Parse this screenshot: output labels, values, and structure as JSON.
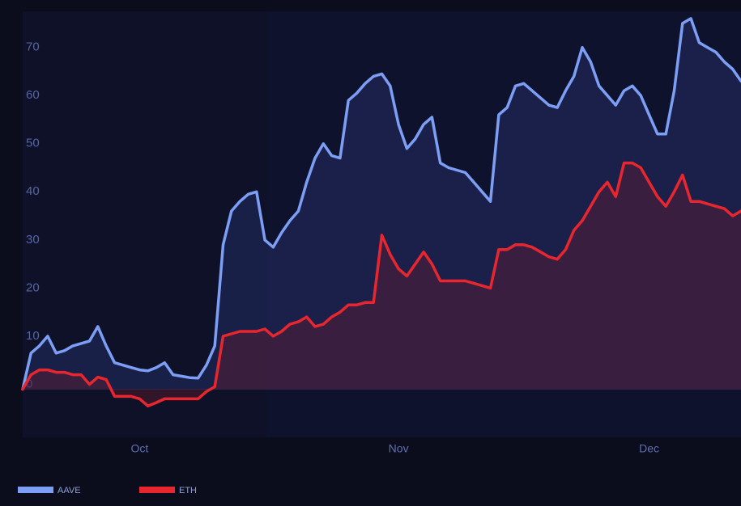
{
  "chart_data": {
    "type": "area-line",
    "categories": [
      null,
      null,
      null,
      null,
      null,
      null,
      null,
      null,
      null,
      null,
      null,
      null,
      null,
      null,
      "Oct",
      null,
      null,
      null,
      null,
      null,
      null,
      null,
      null,
      null,
      null,
      null,
      null,
      null,
      null,
      null,
      null,
      null,
      null,
      null,
      null,
      null,
      null,
      null,
      null,
      null,
      null,
      null,
      null,
      null,
      null,
      "Nov",
      null,
      null,
      null,
      null,
      null,
      null,
      null,
      null,
      null,
      null,
      null,
      null,
      null,
      null,
      null,
      null,
      null,
      null,
      null,
      null,
      null,
      null,
      null,
      null,
      null,
      null,
      null,
      null,
      null,
      "Dec",
      null,
      null,
      null,
      null,
      null,
      null,
      null,
      null,
      null,
      null,
      null
    ],
    "series": [
      {
        "name": "AAVE",
        "color": "#7c9ef5",
        "values": [
          0,
          7.5,
          9,
          11,
          7.5,
          8,
          9,
          9.5,
          10,
          13,
          9,
          5.5,
          5,
          4.5,
          4,
          3.8,
          4.5,
          5.5,
          3,
          2.7,
          2.4,
          2.3,
          5,
          9,
          30,
          37,
          39,
          40.5,
          41,
          31,
          29.5,
          32.5,
          35,
          37,
          43,
          48,
          51,
          48.5,
          48,
          60,
          61.5,
          63.5,
          65,
          65.5,
          63,
          55,
          50,
          52,
          55,
          56.5,
          47,
          46,
          45.5,
          45,
          43,
          41,
          39,
          57,
          58.5,
          63,
          63.5,
          62,
          60.5,
          59,
          58.5,
          62,
          65,
          71,
          68,
          63,
          61,
          59,
          62,
          63,
          61,
          57,
          53,
          53,
          62,
          76,
          77,
          72,
          71,
          70,
          68,
          66.5,
          64
        ]
      },
      {
        "name": "ETH",
        "color": "#e8262e",
        "values": [
          0,
          3,
          4,
          4,
          3.5,
          3.5,
          3,
          3,
          1,
          2.5,
          2,
          -1.5,
          -1.5,
          -1.5,
          -2,
          -3.5,
          -2.8,
          -2,
          -2,
          -2,
          -2,
          -2,
          -0.5,
          0.5,
          11,
          11.5,
          12,
          12,
          12,
          12.5,
          11,
          12,
          13.5,
          14,
          15,
          13,
          13.5,
          15,
          16,
          17.5,
          17.5,
          18,
          18,
          32,
          28,
          25,
          23.5,
          26,
          28.5,
          26,
          22.5,
          22.5,
          22.5,
          22.5,
          22,
          21.5,
          21,
          29,
          29,
          30,
          30,
          29.5,
          28.5,
          27.5,
          27,
          29,
          33,
          35,
          38,
          41,
          43,
          40,
          47,
          47,
          46,
          43,
          40,
          38,
          41,
          44.5,
          39,
          39,
          38.5,
          38,
          37.5,
          36,
          37
        ]
      }
    ],
    "ylim": [
      -10,
      78.5
    ],
    "yticks": [
      0,
      10,
      20,
      30,
      40,
      50,
      60,
      70
    ],
    "grid": false
  }
}
